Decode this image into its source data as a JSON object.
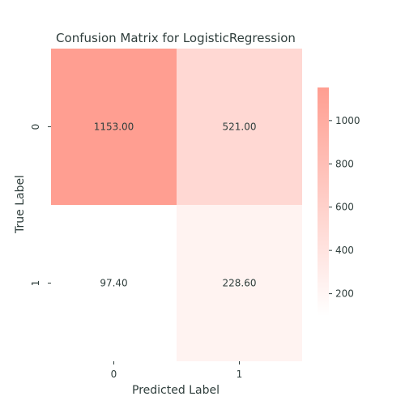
{
  "chart_data": {
    "type": "heatmap",
    "title": "Confusion Matrix for LogisticRegression",
    "xlabel": "Predicted Label",
    "ylabel": "True Label",
    "x_categories": [
      "0",
      "1"
    ],
    "y_categories": [
      "0",
      "1"
    ],
    "values": [
      [
        1153.0,
        521.0
      ],
      [
        97.4,
        228.6
      ]
    ],
    "cell_labels": [
      [
        "1153.00",
        "521.00"
      ],
      [
        "97.40",
        "228.60"
      ]
    ],
    "colorbar": {
      "range": [
        97.4,
        1153.0
      ],
      "ticks": [
        200,
        400,
        600,
        800,
        1000
      ],
      "tick_labels": [
        "200",
        "400",
        "600",
        "800",
        "1000"
      ],
      "color_low": "#ffffff",
      "color_high": "#ff9e91"
    },
    "grid": false
  }
}
